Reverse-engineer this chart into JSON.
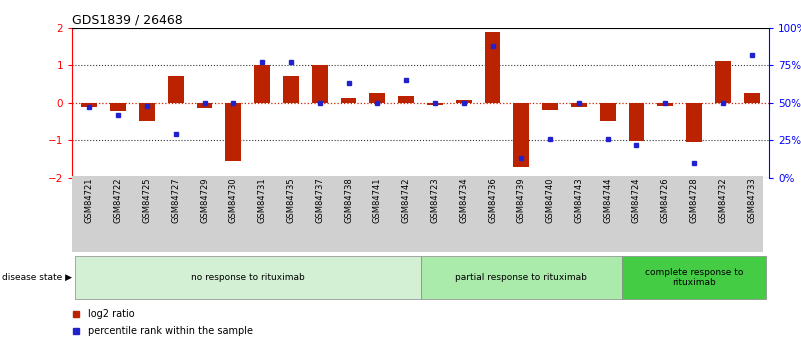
{
  "title": "GDS1839 / 26468",
  "samples": [
    "GSM84721",
    "GSM84722",
    "GSM84725",
    "GSM84727",
    "GSM84729",
    "GSM84730",
    "GSM84731",
    "GSM84735",
    "GSM84737",
    "GSM84738",
    "GSM84741",
    "GSM84742",
    "GSM84723",
    "GSM84734",
    "GSM84736",
    "GSM84739",
    "GSM84740",
    "GSM84743",
    "GSM84744",
    "GSM84724",
    "GSM84726",
    "GSM84728",
    "GSM84732",
    "GSM84733"
  ],
  "log2_ratio": [
    -0.12,
    -0.22,
    -0.5,
    0.7,
    -0.15,
    -1.55,
    1.0,
    0.7,
    1.0,
    0.12,
    0.25,
    0.18,
    -0.05,
    0.08,
    1.88,
    -1.72,
    -0.2,
    -0.12,
    -0.5,
    -1.02,
    -0.08,
    -1.05,
    1.1,
    0.25
  ],
  "percentile": [
    47,
    42,
    48,
    29,
    50,
    50,
    77,
    77,
    50,
    63,
    50,
    65,
    50,
    50,
    88,
    13,
    26,
    50,
    26,
    22,
    50,
    10,
    50,
    82
  ],
  "groups": [
    {
      "label": "no response to rituximab",
      "start": 0,
      "end": 11,
      "color": "#d4f0d4"
    },
    {
      "label": "partial response to rituximab",
      "start": 12,
      "end": 18,
      "color": "#aaeaaa"
    },
    {
      "label": "complete response to\nrituximab",
      "start": 19,
      "end": 23,
      "color": "#44cc44"
    }
  ],
  "bar_color_red": "#bb2200",
  "bar_color_blue": "#2222cc",
  "ylim": [
    -2,
    2
  ],
  "yticks": [
    -2,
    -1,
    0,
    1,
    2
  ],
  "y2ticks": [
    0,
    25,
    50,
    75,
    100
  ],
  "y2ticklabels": [
    "0%",
    "25%",
    "50%",
    "75%",
    "100%"
  ],
  "hline_color": "#cc2200",
  "dotted_color": "#333333",
  "legend_red": "log2 ratio",
  "legend_blue": "percentile rank within the sample",
  "disease_state_label": "disease state"
}
